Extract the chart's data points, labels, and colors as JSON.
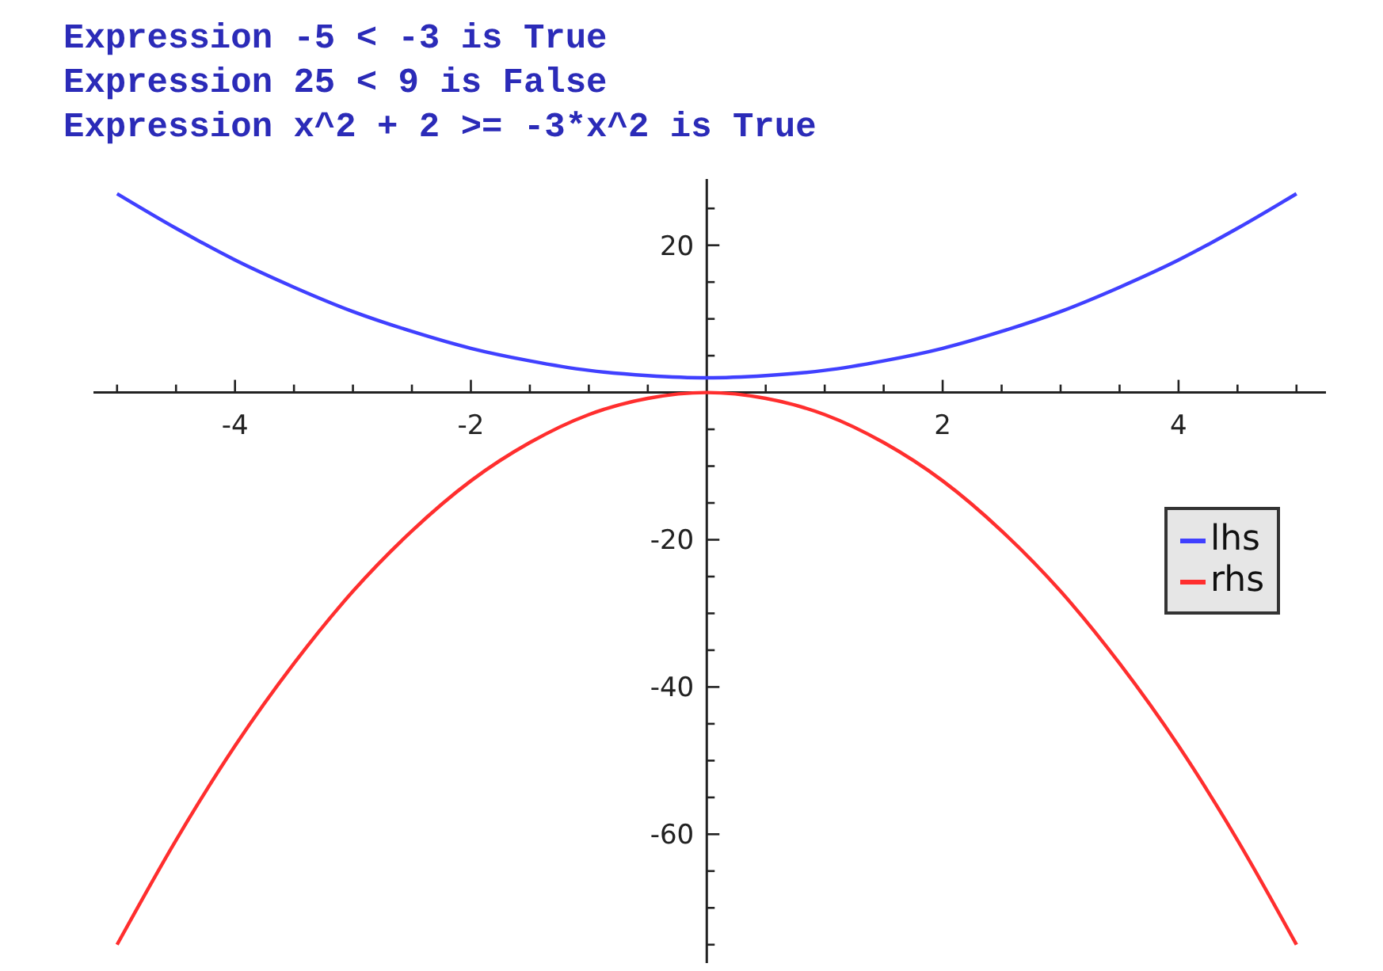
{
  "chart_data": {
    "type": "line",
    "annotations": [
      "Expression -5 < -3 is True",
      "Expression 25 < 9 is False",
      "Expression x^2 + 2 >= -3*x^2 is True"
    ],
    "x": [
      -5,
      -4.5,
      -4,
      -3.5,
      -3,
      -2.5,
      -2,
      -1.5,
      -1,
      -0.5,
      0,
      0.5,
      1,
      1.5,
      2,
      2.5,
      3,
      3.5,
      4,
      4.5,
      5
    ],
    "series": [
      {
        "name": "lhs",
        "color": "#4040ff",
        "values": [
          27,
          22.3,
          18,
          14.3,
          11,
          8.3,
          6,
          4.3,
          3,
          2.3,
          2,
          2.3,
          3,
          4.3,
          6,
          8.3,
          11,
          14.3,
          18,
          22.3,
          27
        ]
      },
      {
        "name": "rhs",
        "color": "#ff2e2e",
        "values": [
          -75,
          -60.8,
          -48,
          -36.8,
          -27,
          -18.8,
          -12,
          -6.8,
          -3,
          -0.8,
          0,
          -0.8,
          -3,
          -6.8,
          -12,
          -18.8,
          -27,
          -36.8,
          -48,
          -60.8,
          -75
        ]
      }
    ],
    "xlim": [
      -5.2,
      5.25
    ],
    "ylim": [
      -77.5,
      29
    ],
    "xticks": [
      {
        "value": -5,
        "label": null
      },
      {
        "value": -4.5,
        "label": null
      },
      -4,
      {
        "value": -3.5,
        "label": null
      },
      {
        "value": -3,
        "label": null
      },
      {
        "value": -2.5,
        "label": null
      },
      -2,
      {
        "value": -1.5,
        "label": null
      },
      {
        "value": -1,
        "label": null
      },
      {
        "value": -0.5,
        "label": null
      },
      {
        "value": 0.5,
        "label": null
      },
      {
        "value": 1,
        "label": null
      },
      {
        "value": 1.5,
        "label": null
      },
      2,
      {
        "value": 2.5,
        "label": null
      },
      {
        "value": 3,
        "label": null
      },
      {
        "value": 3.5,
        "label": null
      },
      4,
      {
        "value": 4.5,
        "label": null
      },
      {
        "value": 5,
        "label": null
      }
    ],
    "yticks": [
      {
        "value": 25,
        "label": null
      },
      20,
      {
        "value": 15,
        "label": null
      },
      {
        "value": 10,
        "label": null
      },
      {
        "value": 5,
        "label": null
      },
      {
        "value": -5,
        "label": null
      },
      {
        "value": -10,
        "label": null
      },
      {
        "value": -15,
        "label": null
      },
      -20,
      {
        "value": -25,
        "label": null
      },
      {
        "value": -30,
        "label": null
      },
      {
        "value": -35,
        "label": null
      },
      -40,
      {
        "value": -45,
        "label": null
      },
      {
        "value": -50,
        "label": null
      },
      {
        "value": -55,
        "label": null
      },
      -60,
      {
        "value": -65,
        "label": null
      },
      {
        "value": -70,
        "label": null
      },
      {
        "value": -75,
        "label": null
      }
    ],
    "legend": "right"
  }
}
